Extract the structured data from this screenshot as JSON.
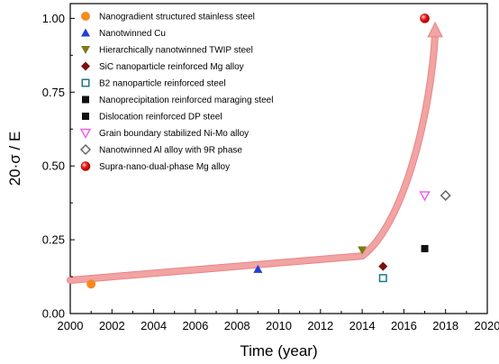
{
  "chart_data": {
    "type": "scatter",
    "xlabel": "Time (year)",
    "ylabel": "20·σ / E",
    "xlim": [
      2000,
      2020
    ],
    "ylim": [
      0.0,
      1.05
    ],
    "xticks": [
      "2000",
      "2002",
      "2004",
      "2006",
      "2008",
      "2010",
      "2012",
      "2014",
      "2016",
      "2018",
      "2020"
    ],
    "yticks": [
      "0.00",
      "0.25",
      "0.50",
      "0.75",
      "1.00"
    ],
    "grid": false,
    "legend_position": "top-left",
    "series": [
      {
        "name": "Nanogradient structured stainless steel",
        "marker": "circle",
        "color": "#f58a1f",
        "x": 2001,
        "y": 0.1
      },
      {
        "name": "Nanotwinned Cu",
        "marker": "triangle-up",
        "color": "#1f3fd8",
        "x": 2009,
        "y": 0.15
      },
      {
        "name": "Hierarchically nanotwinned TWIP steel",
        "marker": "triangle-down",
        "color": "#7a7a16",
        "x": 2014,
        "y": 0.215
      },
      {
        "name": "SiC nanoparticle reinforced Mg alloy",
        "marker": "diamond",
        "color": "#7a1010",
        "x": 2015,
        "y": 0.16
      },
      {
        "name": "B2 nanoparticle reinforced steel",
        "marker": "square-open",
        "color": "#1a7a80",
        "x": 2015,
        "y": 0.12
      },
      {
        "name": "Nanoprecipitation reinforced maraging steel",
        "marker": "square",
        "color": "#111111",
        "x": null,
        "y": null
      },
      {
        "name": "Dislocation reinforced DP steel",
        "marker": "square",
        "color": "#111111",
        "x": 2017,
        "y": 0.22
      },
      {
        "name": "Grain boundary stabilized Ni-Mo alloy",
        "marker": "triangle-down-open",
        "color": "#f060f0",
        "x": 2017,
        "y": 0.4
      },
      {
        "name": "Nanotwinned Al alloy with 9R phase",
        "marker": "diamond-open",
        "color": "#666666",
        "x": 2018,
        "y": 0.4
      },
      {
        "name": "Supra-nano-dual-phase Mg alloy",
        "marker": "sphere",
        "color": "#e01818",
        "x": 2017,
        "y": 1.0
      }
    ],
    "arrow": {
      "color": "#f2a3a3",
      "path": [
        [
          2000,
          0.113
        ],
        [
          2014,
          0.195
        ],
        [
          2016,
          0.3
        ],
        [
          2017.3,
          0.68
        ],
        [
          2017.5,
          0.98
        ]
      ]
    }
  }
}
